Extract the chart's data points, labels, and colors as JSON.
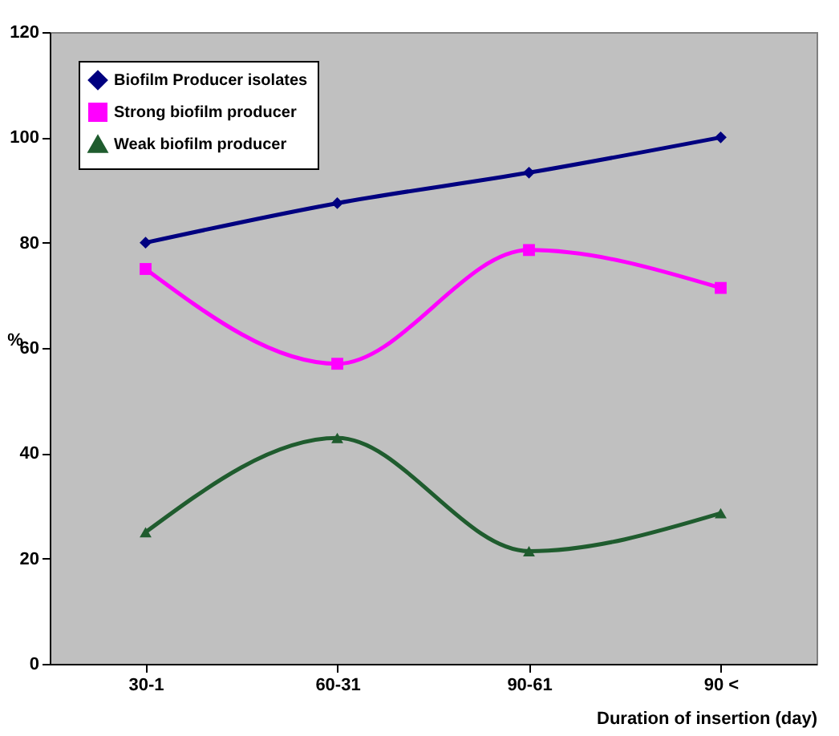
{
  "chart_data": {
    "type": "line",
    "xlabel": "Duration of insertion  (day)",
    "ylabel": "%",
    "categories": [
      "30-1",
      "60-31",
      "90-61",
      "90 <"
    ],
    "series": [
      {
        "name": "Biofilm Producer isolates",
        "color": "#000080",
        "marker": "diamond",
        "values": [
          80,
          87.5,
          93.3,
          100
        ]
      },
      {
        "name": "Strong biofilm producer",
        "color": "#ff00ff",
        "marker": "square",
        "values": [
          75,
          57,
          78.6,
          71.4
        ]
      },
      {
        "name": "Weak biofilm producer",
        "color": "#1f5c2e",
        "marker": "triangle",
        "values": [
          25,
          42.9,
          21.4,
          28.6
        ]
      }
    ],
    "ylim": [
      0,
      120
    ],
    "yticks": [
      0,
      20,
      40,
      60,
      80,
      100,
      120
    ],
    "grid": false,
    "legend": "top left",
    "line_style": "solid"
  }
}
